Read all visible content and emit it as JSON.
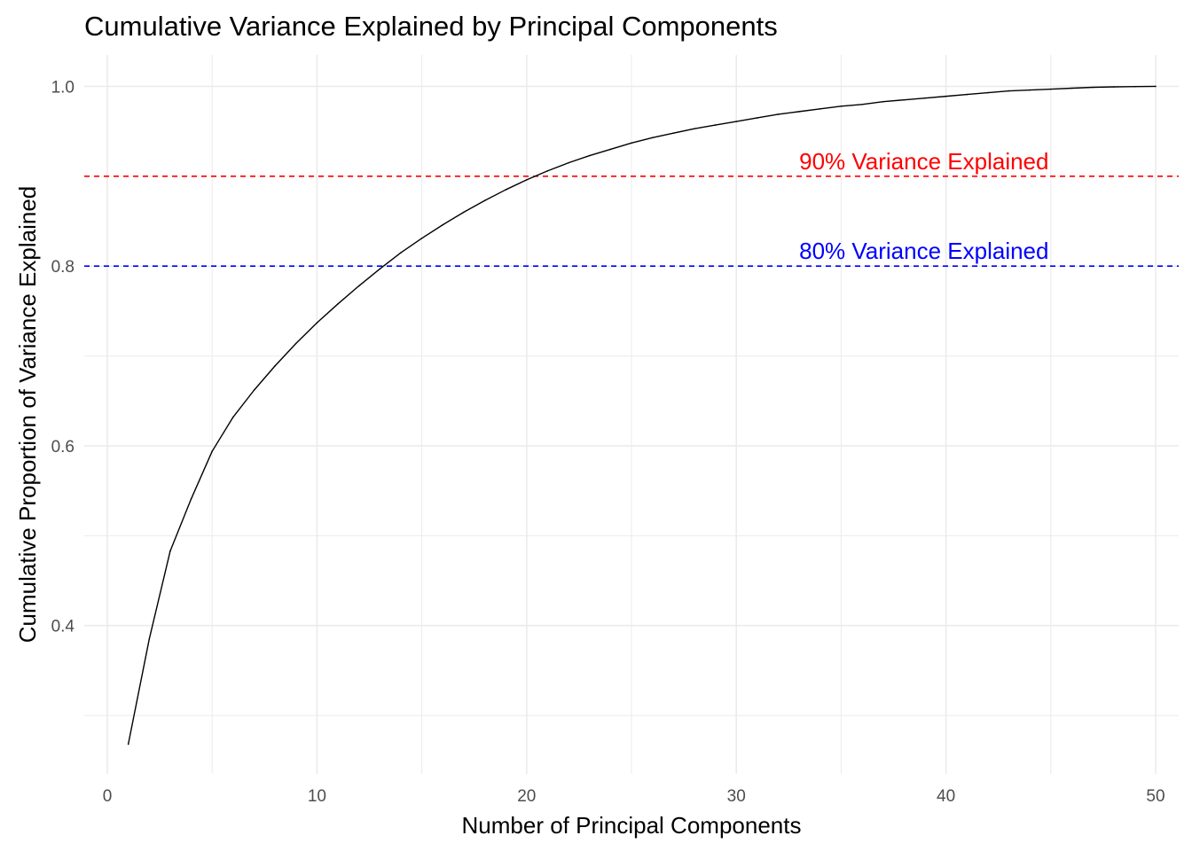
{
  "chart_data": {
    "type": "line",
    "title": "Cumulative Variance Explained by Principal Components",
    "xlabel": "Number of Principal Components",
    "ylabel": "Cumulative Proportion of Variance Explained",
    "xlim": [
      -1.1,
      51.1
    ],
    "ylim": [
      0.235,
      1.035
    ],
    "x_ticks": [
      0,
      10,
      20,
      30,
      40,
      50
    ],
    "y_ticks": [
      0.4,
      0.6,
      0.8,
      1.0
    ],
    "y_tick_labels": [
      "0.4",
      "0.6",
      "0.8",
      "1.0"
    ],
    "grid": true,
    "series": [
      {
        "color": "#000000",
        "x": [
          1,
          2,
          3,
          4,
          5,
          6,
          7,
          8,
          9,
          10,
          11,
          12,
          13,
          14,
          15,
          16,
          17,
          18,
          19,
          20,
          21,
          22,
          23,
          24,
          25,
          26,
          27,
          28,
          29,
          30,
          31,
          32,
          33,
          34,
          35,
          36,
          37,
          38,
          39,
          40,
          41,
          42,
          43,
          44,
          45,
          46,
          47,
          48,
          49,
          50
        ],
        "values": [
          0.268,
          0.385,
          0.483,
          0.541,
          0.594,
          0.632,
          0.662,
          0.689,
          0.714,
          0.737,
          0.758,
          0.778,
          0.797,
          0.815,
          0.831,
          0.846,
          0.86,
          0.873,
          0.885,
          0.896,
          0.906,
          0.915,
          0.923,
          0.93,
          0.937,
          0.943,
          0.948,
          0.953,
          0.957,
          0.961,
          0.965,
          0.969,
          0.972,
          0.975,
          0.978,
          0.98,
          0.983,
          0.985,
          0.987,
          0.989,
          0.991,
          0.993,
          0.995,
          0.996,
          0.997,
          0.998,
          0.999,
          0.9995,
          0.9998,
          1.0
        ]
      }
    ],
    "reference_lines": [
      {
        "y": 0.9,
        "color": "#ff0000",
        "style": "dashed",
        "label": "90% Variance Explained",
        "label_x": 33
      },
      {
        "y": 0.8,
        "color": "#0000ff",
        "style": "dashed",
        "label": "80% Variance Explained",
        "label_x": 33
      }
    ]
  }
}
